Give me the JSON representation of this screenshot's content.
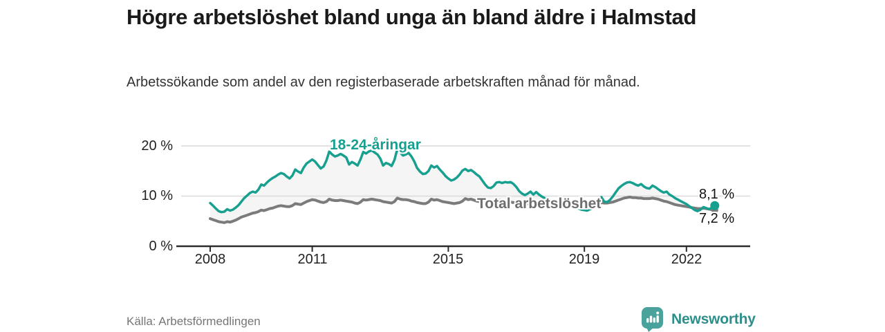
{
  "header": {
    "title": "Högre arbetslöshet bland unga än bland äldre i Halmstad",
    "subtitle": "Arbetssökande som andel av den registerbaserade arbetskraften månad för månad."
  },
  "footer": {
    "source": "Källa: Arbetsförmedlingen",
    "brand": "Newsworthy"
  },
  "colors": {
    "young_line": "#17a08f",
    "total_line": "#7b7b7b",
    "total_label_text": "#6e6e6e",
    "fill_between": "#f5f5f5",
    "gridline": "#d9d9d9",
    "axis": "#2b2b2b",
    "value_label_text": "#111111",
    "logo_teal": "#4aa29c",
    "brand_text_teal": "#2e8f8a"
  },
  "chart_data": {
    "type": "line",
    "x_unit": "month",
    "x_start": "2008-01",
    "x_end": "2022-11",
    "ylim": [
      0,
      22
    ],
    "grid": "horizontal",
    "y_ticks": [
      {
        "label": "0 %",
        "value": 0
      },
      {
        "label": "10 %",
        "value": 10
      },
      {
        "label": "20 %",
        "value": 20
      }
    ],
    "x_ticks": [
      {
        "label": "2008",
        "year": 2008
      },
      {
        "label": "2011",
        "year": 2011
      },
      {
        "label": "2015",
        "year": 2015
      },
      {
        "label": "2019",
        "year": 2019
      },
      {
        "label": "2022",
        "year": 2022
      }
    ],
    "series": [
      {
        "id": "young",
        "name": "18-24-åringar",
        "color": "#17a08f",
        "end_label": "8,1 %",
        "end_value": 8.1,
        "values": [
          8.6,
          8.1,
          7.5,
          7.0,
          6.8,
          6.9,
          7.4,
          7.1,
          7.3,
          7.7,
          8.2,
          8.9,
          9.6,
          10.1,
          10.6,
          10.9,
          10.7,
          11.3,
          12.3,
          12.1,
          12.7,
          13.2,
          13.6,
          13.9,
          14.3,
          14.6,
          14.4,
          13.9,
          13.5,
          14.1,
          15.3,
          14.9,
          14.6,
          15.7,
          16.5,
          16.9,
          17.3,
          16.9,
          16.2,
          15.5,
          15.9,
          17.1,
          18.9,
          18.3,
          17.9,
          18.1,
          18.4,
          18.1,
          17.7,
          16.3,
          16.8,
          16.5,
          16.1,
          17.3,
          18.8,
          18.5,
          18.9,
          19.1,
          18.7,
          18.3,
          17.5,
          16.1,
          16.6,
          16.4,
          16.0,
          17.2,
          19.4,
          18.7,
          18.1,
          18.3,
          18.6,
          17.9,
          16.9,
          15.6,
          14.9,
          14.4,
          14.5,
          15.0,
          16.1,
          15.7,
          16.0,
          15.3,
          14.7,
          14.0,
          13.5,
          13.1,
          13.3,
          13.7,
          14.3,
          15.1,
          15.4,
          15.0,
          15.2,
          14.8,
          14.3,
          13.9,
          13.1,
          12.3,
          11.7,
          11.6,
          12.0,
          12.7,
          12.8,
          12.6,
          12.8,
          12.7,
          12.8,
          12.4,
          11.8,
          11.0,
          10.5,
          10.2,
          10.5,
          10.9,
          10.3,
          10.8,
          10.3,
          9.9,
          9.6,
          9.4,
          9.1,
          8.8,
          8.6,
          8.4,
          8.2,
          8.6,
          8.9,
          8.5,
          8.1,
          7.8,
          7.5,
          7.3,
          7.2,
          7.1,
          7.4,
          7.6,
          7.9,
          8.7,
          9.8,
          8.9,
          8.8,
          9.2,
          9.9,
          10.7,
          11.5,
          12.0,
          12.4,
          12.7,
          12.8,
          12.6,
          12.3,
          12.1,
          12.4,
          11.9,
          11.6,
          11.5,
          12.1,
          11.8,
          11.4,
          11.0,
          10.7,
          10.9,
          10.3,
          10.0,
          9.6,
          9.3,
          9.0,
          8.7,
          8.4,
          8.0,
          7.6,
          7.2,
          7.0,
          7.3,
          7.8,
          7.6,
          7.4,
          7.7,
          8.1
        ]
      },
      {
        "id": "total",
        "name": "Total arbetslöshet",
        "color": "#7b7b7b",
        "end_label": "7,2 %",
        "end_value": 7.2,
        "values": [
          5.5,
          5.3,
          5.1,
          4.9,
          4.8,
          4.7,
          4.9,
          4.8,
          5.0,
          5.2,
          5.5,
          5.8,
          6.0,
          6.2,
          6.4,
          6.6,
          6.7,
          6.9,
          7.2,
          7.1,
          7.3,
          7.5,
          7.6,
          7.8,
          8.0,
          8.1,
          8.0,
          7.9,
          7.9,
          8.1,
          8.5,
          8.4,
          8.3,
          8.6,
          8.9,
          9.1,
          9.3,
          9.2,
          9.0,
          8.8,
          8.7,
          8.9,
          9.4,
          9.2,
          9.1,
          9.1,
          9.2,
          9.1,
          9.0,
          8.9,
          8.8,
          8.6,
          8.5,
          8.8,
          9.3,
          9.2,
          9.3,
          9.4,
          9.3,
          9.2,
          9.1,
          8.9,
          8.8,
          8.7,
          8.6,
          8.9,
          9.6,
          9.4,
          9.3,
          9.3,
          9.2,
          9.0,
          8.9,
          8.7,
          8.6,
          8.5,
          8.5,
          8.8,
          9.4,
          9.2,
          9.3,
          9.1,
          8.9,
          8.8,
          8.7,
          8.6,
          8.5,
          8.6,
          8.7,
          9.0,
          9.5,
          9.3,
          9.4,
          9.2,
          9.0,
          8.9,
          9.0,
          8.8,
          8.7,
          8.7,
          8.8,
          9.1,
          9.2,
          9.1,
          9.0,
          8.9,
          8.8,
          8.7,
          8.6,
          8.5,
          8.4,
          8.4,
          8.5,
          8.7,
          8.8,
          8.7,
          8.5,
          8.4,
          8.3,
          8.2,
          8.2,
          8.1,
          8.0,
          7.9,
          7.9,
          8.1,
          8.4,
          8.2,
          8.1,
          8.0,
          7.9,
          7.9,
          8.0,
          8.0,
          8.1,
          8.1,
          8.2,
          8.4,
          8.7,
          8.6,
          8.6,
          8.7,
          8.8,
          9.0,
          9.2,
          9.4,
          9.6,
          9.7,
          9.8,
          9.7,
          9.7,
          9.6,
          9.6,
          9.5,
          9.5,
          9.5,
          9.6,
          9.5,
          9.4,
          9.2,
          9.0,
          8.9,
          8.7,
          8.5,
          8.3,
          8.2,
          8.1,
          8.0,
          7.9,
          7.8,
          7.7,
          7.6,
          7.5,
          7.5,
          7.6,
          7.5,
          7.4,
          7.3,
          7.2
        ]
      }
    ]
  }
}
